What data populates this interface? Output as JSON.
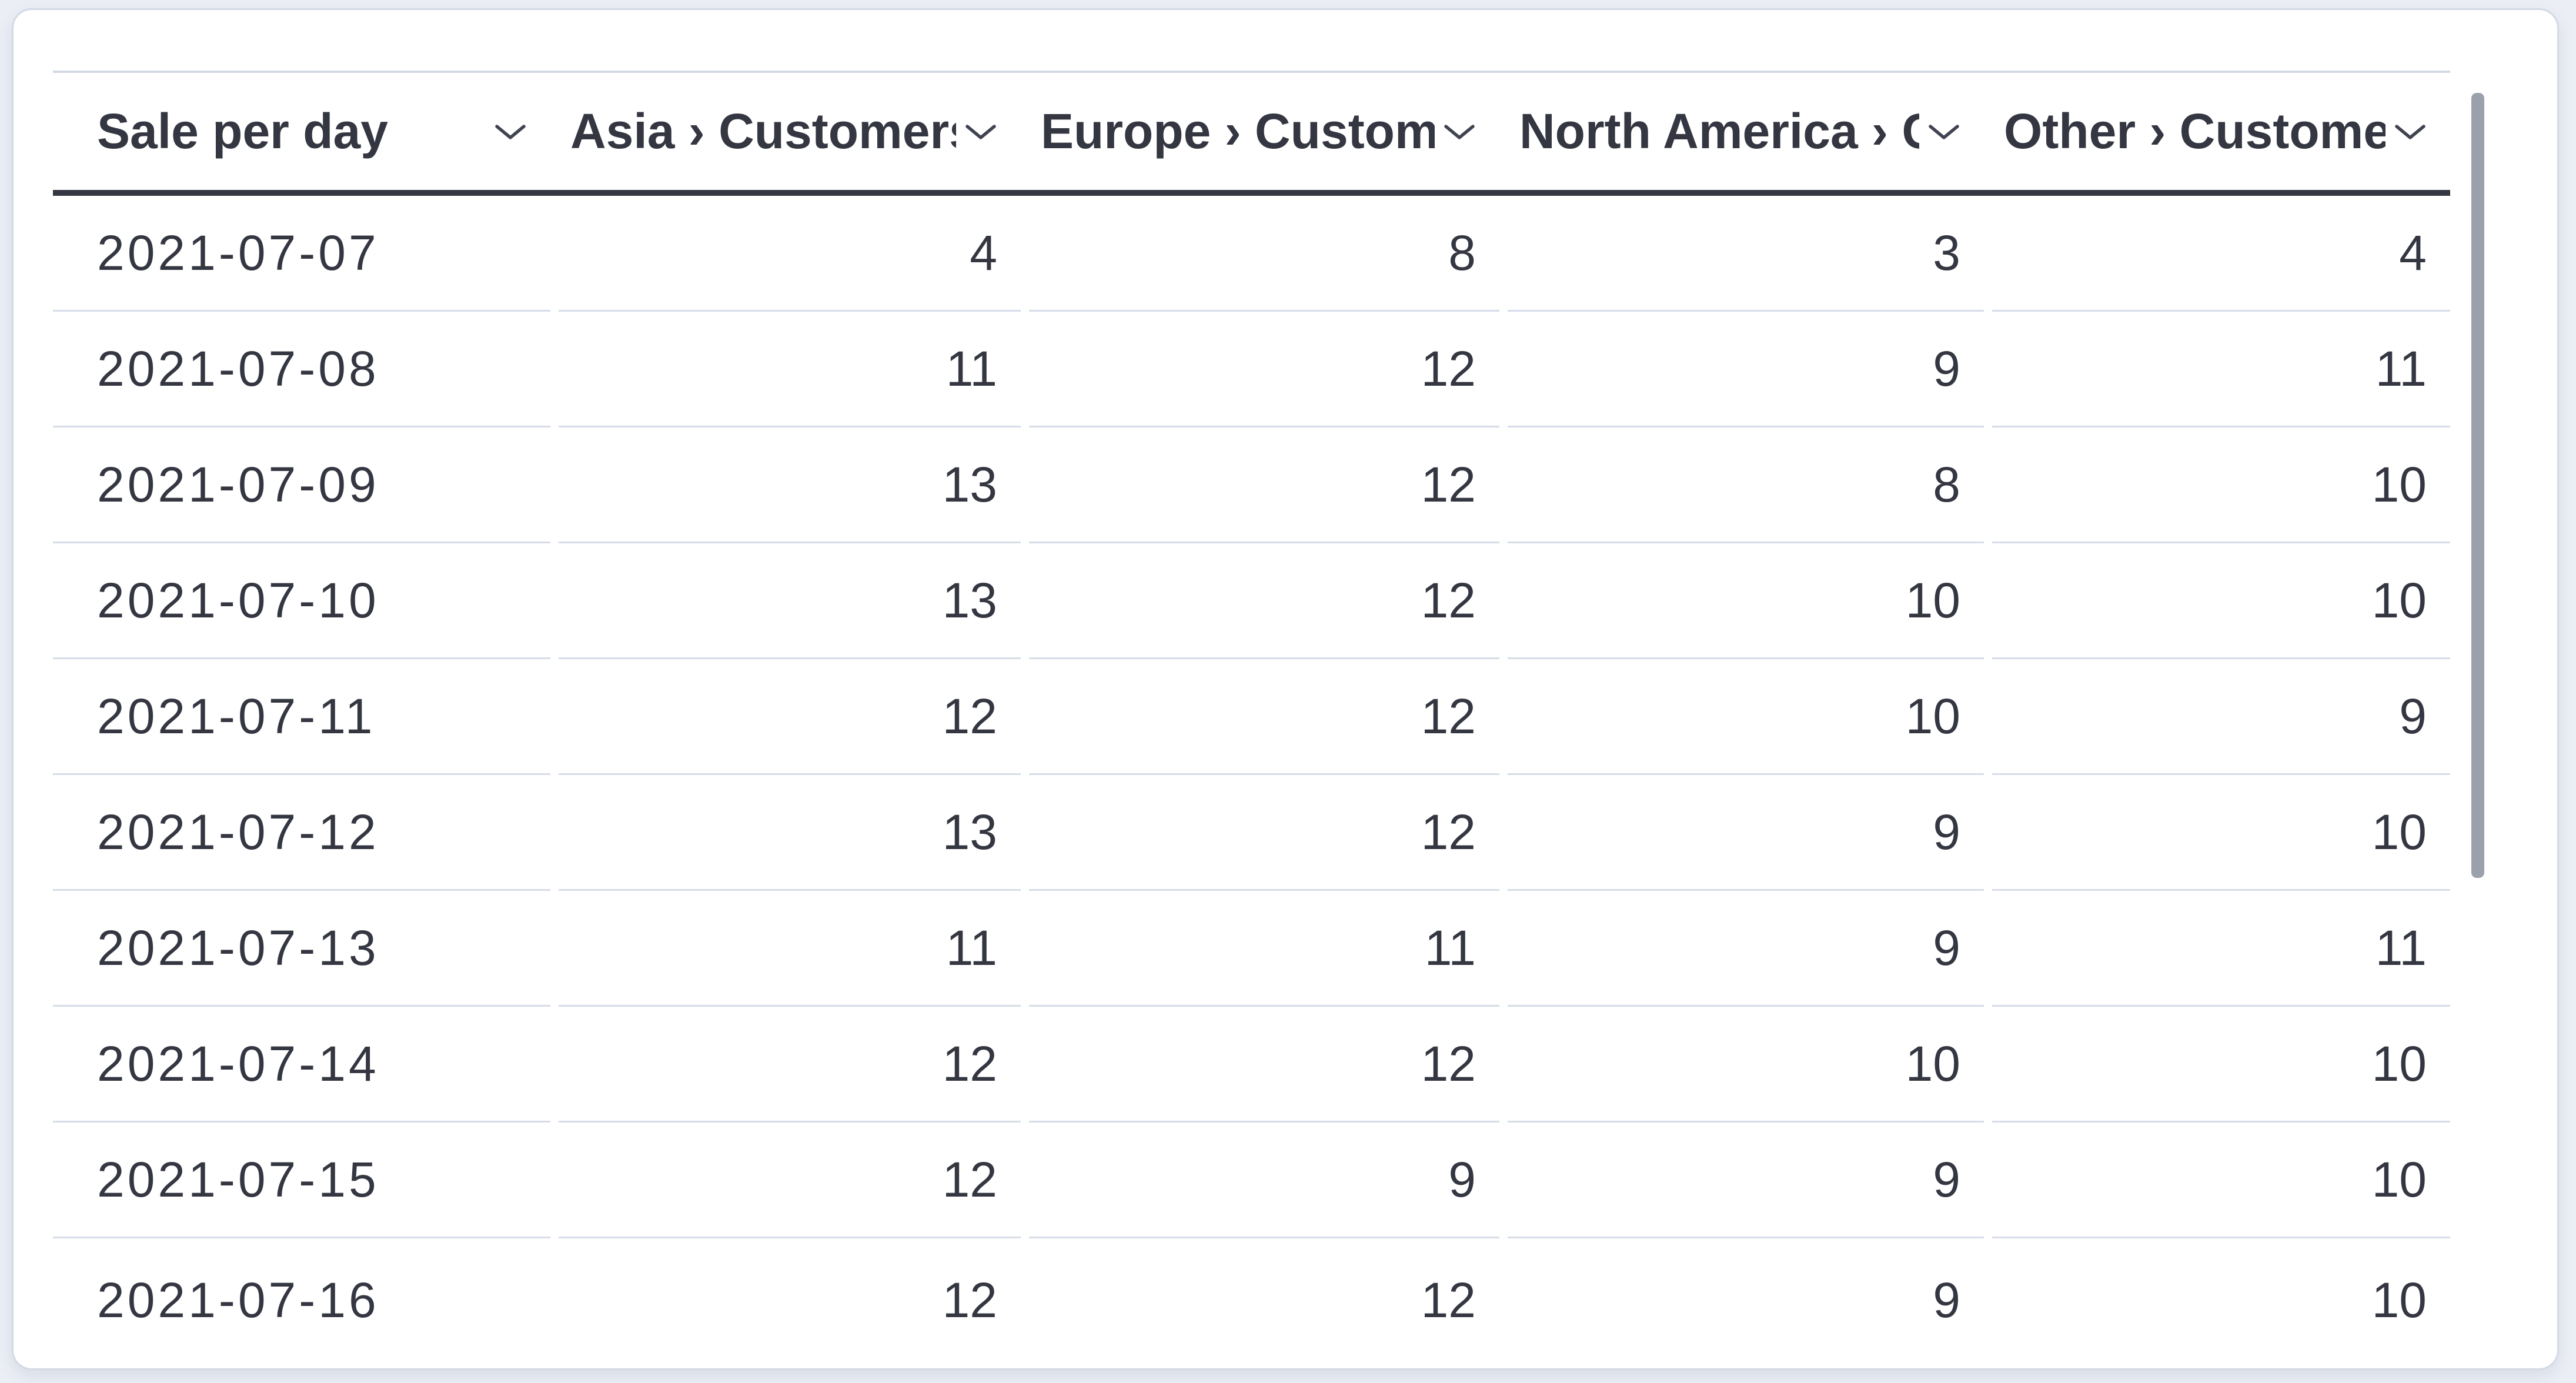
{
  "table": {
    "columns": [
      {
        "id": "date",
        "label": "Sale per day",
        "align": "left"
      },
      {
        "id": "asia",
        "label": "Asia › Customers",
        "align": "right"
      },
      {
        "id": "europe",
        "label": "Europe › Customers",
        "align": "right"
      },
      {
        "id": "north_america",
        "label": "North America › Customers",
        "align": "right"
      },
      {
        "id": "other",
        "label": "Other › Customers",
        "align": "right"
      }
    ],
    "rows": [
      {
        "date": "2021-07-07",
        "asia": "4",
        "europe": "8",
        "north_america": "3",
        "other": "4"
      },
      {
        "date": "2021-07-08",
        "asia": "11",
        "europe": "12",
        "north_america": "9",
        "other": "11"
      },
      {
        "date": "2021-07-09",
        "asia": "13",
        "europe": "12",
        "north_america": "8",
        "other": "10"
      },
      {
        "date": "2021-07-10",
        "asia": "13",
        "europe": "12",
        "north_america": "10",
        "other": "10"
      },
      {
        "date": "2021-07-11",
        "asia": "12",
        "europe": "12",
        "north_america": "10",
        "other": "9"
      },
      {
        "date": "2021-07-12",
        "asia": "13",
        "europe": "12",
        "north_america": "9",
        "other": "10"
      },
      {
        "date": "2021-07-13",
        "asia": "11",
        "europe": "11",
        "north_america": "9",
        "other": "11"
      },
      {
        "date": "2021-07-14",
        "asia": "12",
        "europe": "12",
        "north_america": "10",
        "other": "10"
      },
      {
        "date": "2021-07-15",
        "asia": "12",
        "europe": "9",
        "north_america": "9",
        "other": "10"
      },
      {
        "date": "2021-07-16",
        "asia": "12",
        "europe": "12",
        "north_america": "9",
        "other": "10"
      }
    ]
  },
  "icons": {
    "column_menu": "chevron-down-icon"
  },
  "scrollbar": {
    "vertical_visible": true
  },
  "colors": {
    "text": "#343741",
    "header_underline": "#343741",
    "row_divider": "#d6dce8",
    "grid_top_border": "#d3dae6",
    "card_border": "#d3dae6",
    "card_background": "#ffffff",
    "page_background": "#ebeef5",
    "scrollbar_thumb": "#9aa1ad"
  }
}
